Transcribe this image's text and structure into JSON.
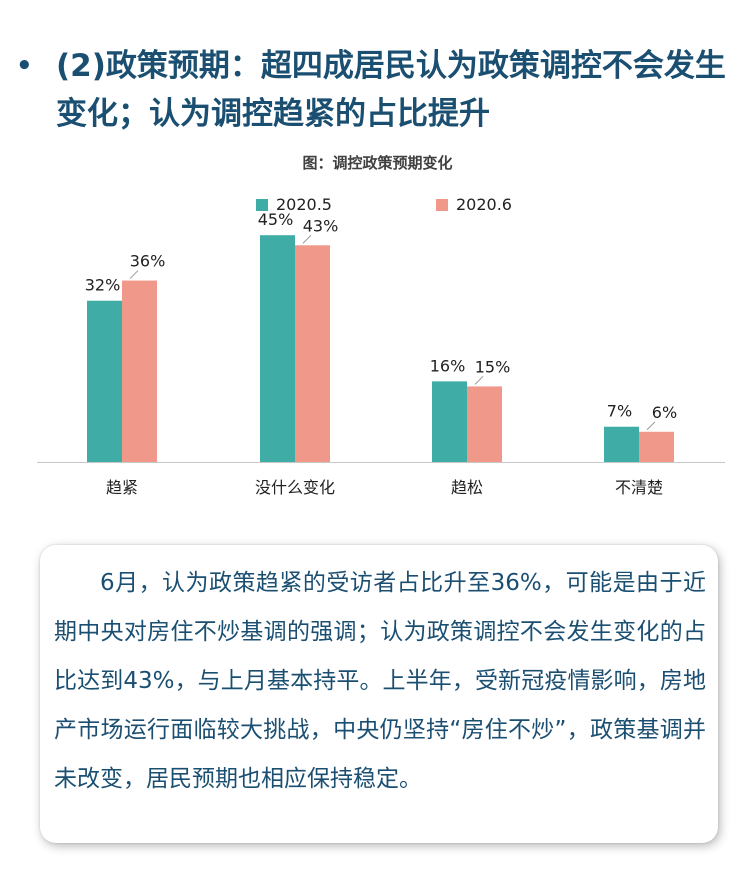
{
  "headline": {
    "bullet": "•",
    "text": "(2)政策预期：超四成居民认为政策调控不会发生变化；认为调控趋紧的占比提升"
  },
  "colors": {
    "series1": "#3fada6",
    "series2": "#f0998a",
    "heading": "#1b4f72"
  },
  "chart_data": {
    "type": "bar",
    "title": "图：调控政策预期变化",
    "categories": [
      "趋紧",
      "没什么变化",
      "趋松",
      "不清楚"
    ],
    "series": [
      {
        "name": "2020.5",
        "values": [
          32,
          45,
          16,
          7
        ],
        "labels": [
          "32%",
          "45%",
          "16%",
          "7%"
        ]
      },
      {
        "name": "2020.6",
        "values": [
          36,
          43,
          15,
          6
        ],
        "labels": [
          "36%",
          "43%",
          "15%",
          "6%"
        ]
      }
    ],
    "ylim": [
      0,
      50
    ],
    "grid": false,
    "legend": "top-center",
    "xlabel": "",
    "ylabel": ""
  },
  "summary": "6月，认为政策趋紧的受访者占比升至36%，可能是由于近期中央对房住不炒基调的强调；认为政策调控不会发生变化的占比达到43%，与上月基本持平。上半年，受新冠疫情影响，房地产市场运行面临较大挑战，中央仍坚持“房住不炒”，政策基调并未改变，居民预期也相应保持稳定。"
}
